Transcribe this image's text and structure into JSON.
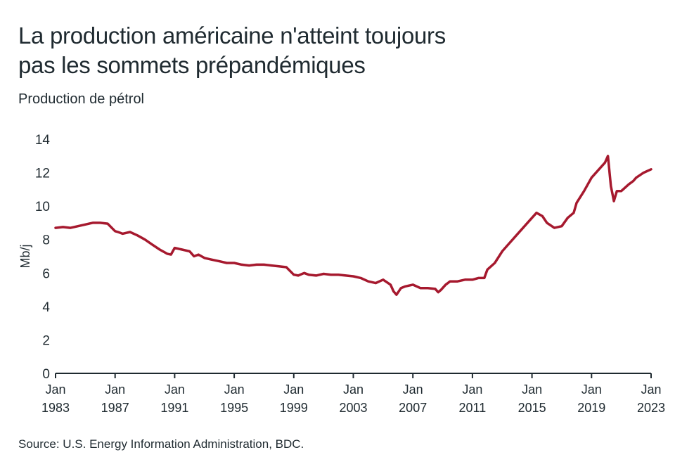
{
  "header": {
    "title_line1": "La production américaine n'atteint toujours",
    "title_line2": "pas les sommets prépandémiques",
    "subtitle": "Production de pétrol"
  },
  "footer": {
    "source": "Source: U.S. Energy Information Administration, BDC."
  },
  "chart_data": {
    "type": "line",
    "ylabel": "Mb/j",
    "xlabel": "",
    "ylim": [
      0,
      14
    ],
    "yticks": [
      0,
      2,
      4,
      6,
      8,
      10,
      12,
      14
    ],
    "xlim": [
      1983.0,
      2023.0
    ],
    "xticks": [
      {
        "value": 1983,
        "month": "Jan",
        "year": "1983"
      },
      {
        "value": 1987,
        "month": "Jan",
        "year": "1987"
      },
      {
        "value": 1991,
        "month": "Jan",
        "year": "1991"
      },
      {
        "value": 1995,
        "month": "Jan",
        "year": "1995"
      },
      {
        "value": 1999,
        "month": "Jan",
        "year": "1999"
      },
      {
        "value": 2003,
        "month": "Jan",
        "year": "2003"
      },
      {
        "value": 2007,
        "month": "Jan",
        "year": "2007"
      },
      {
        "value": 2011,
        "month": "Jan",
        "year": "2011"
      },
      {
        "value": 2015,
        "month": "Jan",
        "year": "2015"
      },
      {
        "value": 2019,
        "month": "Jan",
        "year": "2019"
      },
      {
        "value": 2023,
        "month": "Jan",
        "year": "2023"
      }
    ],
    "grid": false,
    "legend": "none",
    "series": [
      {
        "color": "#a6192e",
        "x": [
          1983.0,
          1983.5,
          1984.0,
          1984.5,
          1985.0,
          1985.5,
          1986.0,
          1986.5,
          1987.0,
          1987.2,
          1987.5,
          1988.0,
          1988.5,
          1989.0,
          1989.5,
          1990.0,
          1990.5,
          1990.75,
          1991.0,
          1991.5,
          1992.0,
          1992.3,
          1992.6,
          1993.0,
          1993.5,
          1994.0,
          1994.5,
          1995.0,
          1995.5,
          1996.0,
          1996.5,
          1997.0,
          1997.5,
          1998.0,
          1998.5,
          1999.0,
          1999.3,
          1999.7,
          2000.0,
          2000.5,
          2001.0,
          2001.5,
          2002.0,
          2002.5,
          2003.0,
          2003.5,
          2004.0,
          2004.5,
          2005.0,
          2005.5,
          2005.7,
          2005.9,
          2006.2,
          2006.5,
          2007.0,
          2007.5,
          2008.0,
          2008.5,
          2008.7,
          2008.9,
          2009.2,
          2009.5,
          2010.0,
          2010.5,
          2011.0,
          2011.4,
          2011.8,
          2012.0,
          2012.5,
          2013.0,
          2013.5,
          2014.0,
          2014.5,
          2015.0,
          2015.3,
          2015.7,
          2016.0,
          2016.5,
          2017.0,
          2017.4,
          2017.8,
          2018.0,
          2018.5,
          2019.0,
          2019.5,
          2019.9,
          2020.1,
          2020.3,
          2020.5,
          2020.7,
          2021.0,
          2021.5,
          2021.8,
          2022.0,
          2022.5,
          2023.0
        ],
        "y": [
          8.7,
          8.75,
          8.7,
          8.8,
          8.9,
          9.0,
          9.0,
          8.95,
          8.5,
          8.45,
          8.35,
          8.45,
          8.25,
          8.0,
          7.7,
          7.4,
          7.15,
          7.1,
          7.5,
          7.4,
          7.3,
          7.0,
          7.1,
          6.9,
          6.8,
          6.7,
          6.6,
          6.6,
          6.5,
          6.45,
          6.5,
          6.5,
          6.45,
          6.4,
          6.35,
          5.9,
          5.85,
          6.0,
          5.9,
          5.85,
          5.95,
          5.9,
          5.9,
          5.85,
          5.8,
          5.7,
          5.5,
          5.4,
          5.6,
          5.3,
          4.9,
          4.7,
          5.1,
          5.2,
          5.3,
          5.1,
          5.1,
          5.05,
          4.85,
          5.0,
          5.3,
          5.5,
          5.5,
          5.6,
          5.6,
          5.7,
          5.7,
          6.2,
          6.6,
          7.3,
          7.8,
          8.3,
          8.8,
          9.3,
          9.6,
          9.4,
          9.0,
          8.7,
          8.8,
          9.3,
          9.6,
          10.2,
          10.9,
          11.7,
          12.2,
          12.6,
          13.0,
          11.2,
          10.3,
          10.9,
          10.9,
          11.3,
          11.5,
          11.7,
          12.0,
          12.2
        ]
      }
    ]
  }
}
